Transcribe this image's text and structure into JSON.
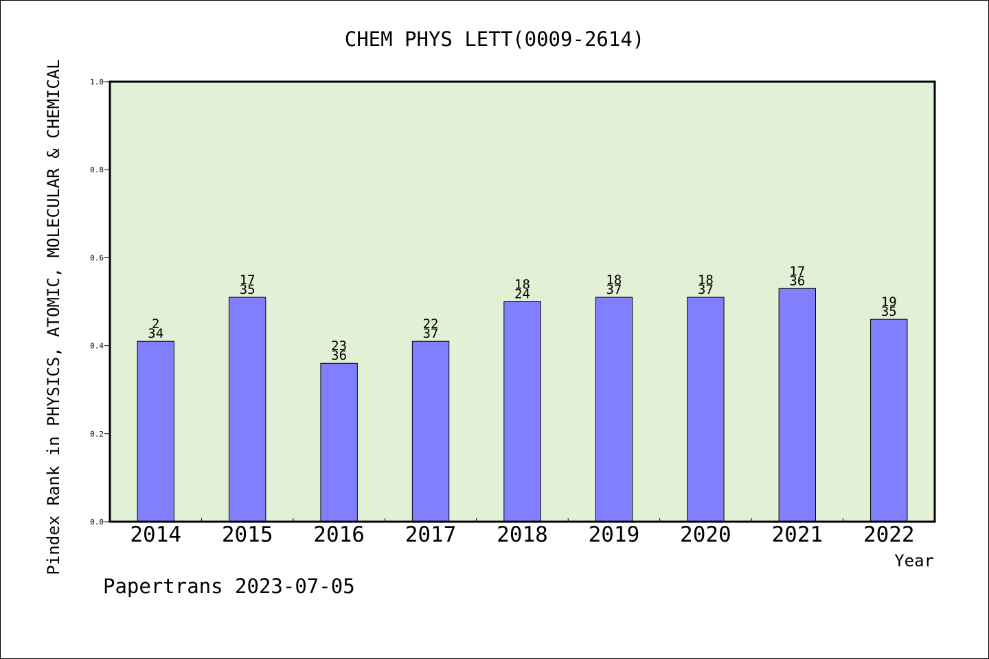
{
  "chart_data": {
    "type": "bar",
    "title": "CHEM PHYS LETT(0009-2614)",
    "xlabel": "Year",
    "ylabel": "Pindex Rank in PHYSICS, ATOMIC, MOLECULAR & CHEMICAL",
    "ylim": [
      0.0,
      1.0
    ],
    "yticks": [
      "0.0",
      "0.2",
      "0.4",
      "0.6",
      "0.8",
      "1.0"
    ],
    "grid": false,
    "categories": [
      "2014",
      "2015",
      "2016",
      "2017",
      "2018",
      "2019",
      "2020",
      "2021",
      "2022"
    ],
    "values": [
      0.41,
      0.51,
      0.36,
      0.41,
      0.5,
      0.51,
      0.51,
      0.53,
      0.46
    ],
    "rank_labels": [
      "2",
      "17",
      "23",
      "22",
      "18",
      "18",
      "18",
      "17",
      "19"
    ],
    "total_labels": [
      "34",
      "35",
      "36",
      "37",
      "24",
      "37",
      "37",
      "36",
      "35"
    ],
    "colors": {
      "plot_background": "#e2f0d6",
      "bar_fill": "#8080ff",
      "bar_stroke": "#000000"
    }
  },
  "footer": "Papertrans 2023-07-05"
}
